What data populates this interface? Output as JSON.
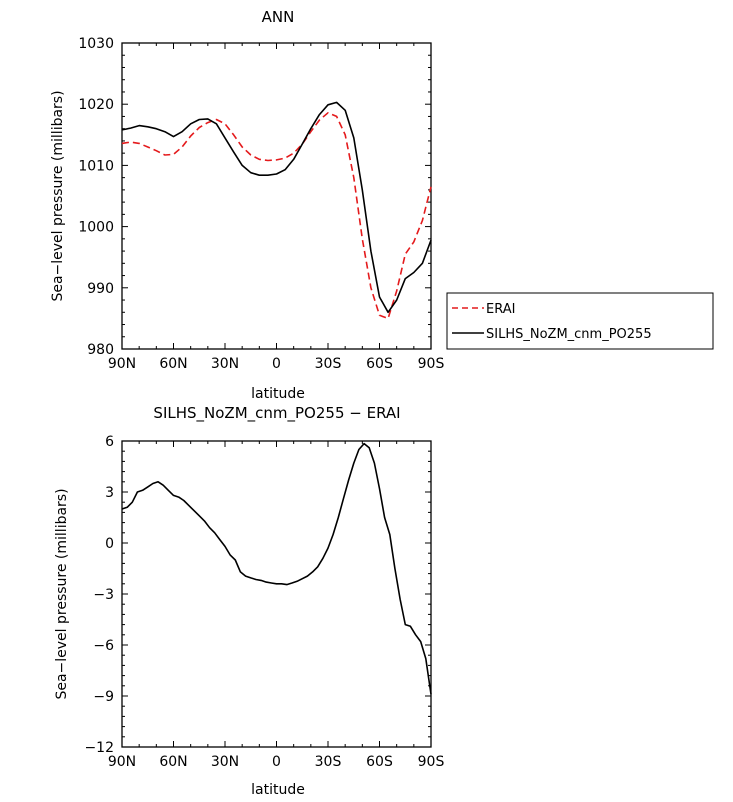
{
  "chart_data": [
    {
      "type": "line",
      "title": "ANN",
      "xlabel": "latitude",
      "ylabel": "Sea−level pressure (millibars)",
      "xlim": [
        90,
        -90
      ],
      "ylim": [
        980,
        1030
      ],
      "xticks": [
        90,
        60,
        30,
        0,
        -30,
        -60,
        -90
      ],
      "xtick_labels": [
        "90N",
        "60N",
        "30N",
        "0",
        "30S",
        "60S",
        "90S"
      ],
      "yticks": [
        980,
        990,
        1000,
        1010,
        1020,
        1030
      ],
      "ytick_labels": [
        "980",
        "990",
        "1000",
        "1010",
        "1020",
        "1030"
      ],
      "legend_position": "right",
      "series": [
        {
          "name": "ERAI",
          "color": "#e41a1c",
          "style": "dashed",
          "x": [
            90,
            85,
            80,
            75,
            70,
            65,
            60,
            55,
            50,
            45,
            40,
            35,
            30,
            25,
            20,
            15,
            10,
            5,
            0,
            -5,
            -10,
            -15,
            -20,
            -25,
            -30,
            -35,
            -40,
            -45,
            -50,
            -55,
            -60,
            -65,
            -70,
            -75,
            -80,
            -85,
            -90
          ],
          "y": [
            1013.6,
            1013.8,
            1013.6,
            1013.0,
            1012.4,
            1011.7,
            1011.8,
            1013.0,
            1014.8,
            1016.2,
            1017.0,
            1017.5,
            1016.8,
            1015.0,
            1013.0,
            1011.7,
            1011.0,
            1010.8,
            1010.9,
            1011.2,
            1012.0,
            1013.5,
            1015.5,
            1017.4,
            1018.6,
            1018.0,
            1015.0,
            1008.0,
            998.0,
            990.0,
            985.5,
            985.0,
            989.5,
            995.5,
            997.5,
            1001.0,
            1006.5
          ]
        },
        {
          "name": "SILHS_NoZM_cnm_PO255",
          "color": "#000000",
          "style": "solid",
          "x": [
            90,
            85,
            80,
            75,
            70,
            65,
            60,
            55,
            50,
            45,
            40,
            35,
            30,
            25,
            20,
            15,
            10,
            5,
            0,
            -5,
            -10,
            -15,
            -20,
            -25,
            -30,
            -35,
            -40,
            -45,
            -50,
            -55,
            -60,
            -65,
            -70,
            -75,
            -80,
            -85,
            -90
          ],
          "y": [
            1015.8,
            1016.1,
            1016.5,
            1016.3,
            1016.0,
            1015.5,
            1014.7,
            1015.5,
            1016.8,
            1017.5,
            1017.6,
            1016.8,
            1014.5,
            1012.2,
            1010.0,
            1008.8,
            1008.4,
            1008.4,
            1008.6,
            1009.3,
            1011.0,
            1013.5,
            1016.0,
            1018.3,
            1019.9,
            1020.3,
            1019.0,
            1014.5,
            1006.0,
            996.0,
            988.5,
            986.0,
            988.0,
            991.5,
            992.5,
            994.0,
            997.8
          ]
        }
      ]
    },
    {
      "type": "line",
      "title": "SILHS_NoZM_cnm_PO255 − ERAI",
      "xlabel": "latitude",
      "ylabel": "Sea−level pressure (millibars)",
      "xlim": [
        90,
        -90
      ],
      "ylim": [
        -12,
        6
      ],
      "xticks": [
        90,
        60,
        30,
        0,
        -30,
        -60,
        -90
      ],
      "xtick_labels": [
        "90N",
        "60N",
        "30N",
        "0",
        "30S",
        "60S",
        "90S"
      ],
      "yticks": [
        -12,
        -9,
        -6,
        -3,
        0,
        3,
        6
      ],
      "ytick_labels": [
        "−12",
        "−9",
        "−6",
        "−3",
        "0",
        "3",
        "6"
      ],
      "series": [
        {
          "color": "#000000",
          "style": "solid",
          "x": [
            90,
            87,
            84,
            81,
            78,
            75,
            72,
            69,
            66,
            63,
            60,
            57,
            54,
            51,
            48,
            45,
            42,
            39,
            36,
            33,
            30,
            27,
            24,
            21,
            18,
            15,
            12,
            9,
            6,
            3,
            0,
            -3,
            -6,
            -9,
            -12,
            -15,
            -18,
            -21,
            -24,
            -27,
            -30,
            -33,
            -36,
            -39,
            -42,
            -45,
            -48,
            -51,
            -54,
            -57,
            -60,
            -63,
            -66,
            -69,
            -72,
            -75,
            -78,
            -81,
            -84,
            -87,
            -90
          ],
          "y": [
            2.0,
            2.1,
            2.4,
            3.0,
            3.1,
            3.3,
            3.5,
            3.6,
            3.4,
            3.1,
            2.8,
            2.7,
            2.5,
            2.2,
            1.9,
            1.6,
            1.3,
            0.9,
            0.6,
            0.2,
            -0.2,
            -0.7,
            -1.0,
            -1.7,
            -1.95,
            -2.05,
            -2.15,
            -2.2,
            -2.3,
            -2.35,
            -2.4,
            -2.4,
            -2.45,
            -2.35,
            -2.25,
            -2.1,
            -1.95,
            -1.7,
            -1.4,
            -0.9,
            -0.3,
            0.5,
            1.5,
            2.6,
            3.7,
            4.7,
            5.5,
            5.85,
            5.6,
            4.7,
            3.2,
            1.5,
            0.5,
            -1.5,
            -3.3,
            -4.8,
            -4.9,
            -5.4,
            -5.8,
            -6.8,
            -8.9
          ]
        }
      ]
    }
  ]
}
